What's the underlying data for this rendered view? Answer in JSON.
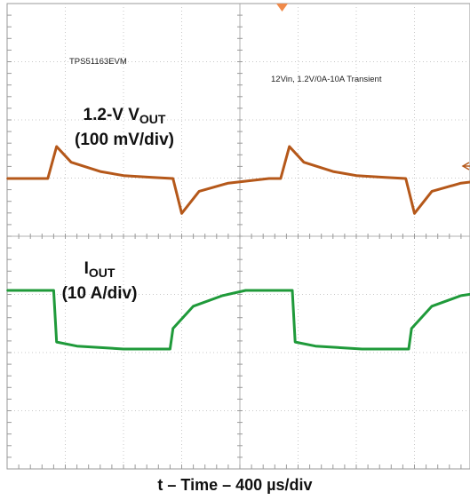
{
  "chart_data": {
    "type": "line",
    "instrument_notes": [
      "TPS51163EVM",
      "12Vin, 1.2V/0A-10A Transient"
    ],
    "channels": [
      {
        "name_parts": [
          "1.2-V V",
          "OUT"
        ],
        "scale": "(100 mV/div)",
        "color": "#b5581a",
        "description_values": "deviation from nominal in divisions",
        "x": [
          0,
          0.7,
          0.85,
          1.1,
          1.6,
          2.0,
          2.5,
          2.85,
          3.0,
          3.3,
          3.8,
          4.5,
          4.7,
          4.85,
          5.1,
          5.6,
          6.0,
          6.5,
          6.85,
          7.0,
          7.3,
          7.8,
          8.2
        ],
        "values": [
          0,
          0,
          0.55,
          0.28,
          0.12,
          0.05,
          0.02,
          0,
          -0.6,
          -0.22,
          -0.08,
          0,
          0,
          0.55,
          0.28,
          0.12,
          0.05,
          0.02,
          0,
          -0.6,
          -0.22,
          -0.08,
          -0.03
        ]
      },
      {
        "name_parts": [
          "I",
          "OUT"
        ],
        "scale": "(10 A/div)",
        "color": "#1f9a3a",
        "description_values": "current in A",
        "x": [
          0,
          0.8,
          0.85,
          1.2,
          2.0,
          2.8,
          2.85,
          3.2,
          3.7,
          4.1,
          4.9,
          4.95,
          5.3,
          6.1,
          6.9,
          6.95,
          7.3,
          7.8,
          8.2
        ],
        "values": [
          10,
          10,
          1.2,
          0.5,
          0,
          0,
          3.5,
          7.3,
          9.1,
          10,
          10,
          1.2,
          0.5,
          0,
          0,
          3.5,
          7.3,
          9.1,
          9.7
        ]
      }
    ],
    "xlabel": "t – Time – 400 µs/div",
    "divisions": {
      "x": 8,
      "y": 8
    },
    "grid": true,
    "trigger_marker": "top"
  }
}
